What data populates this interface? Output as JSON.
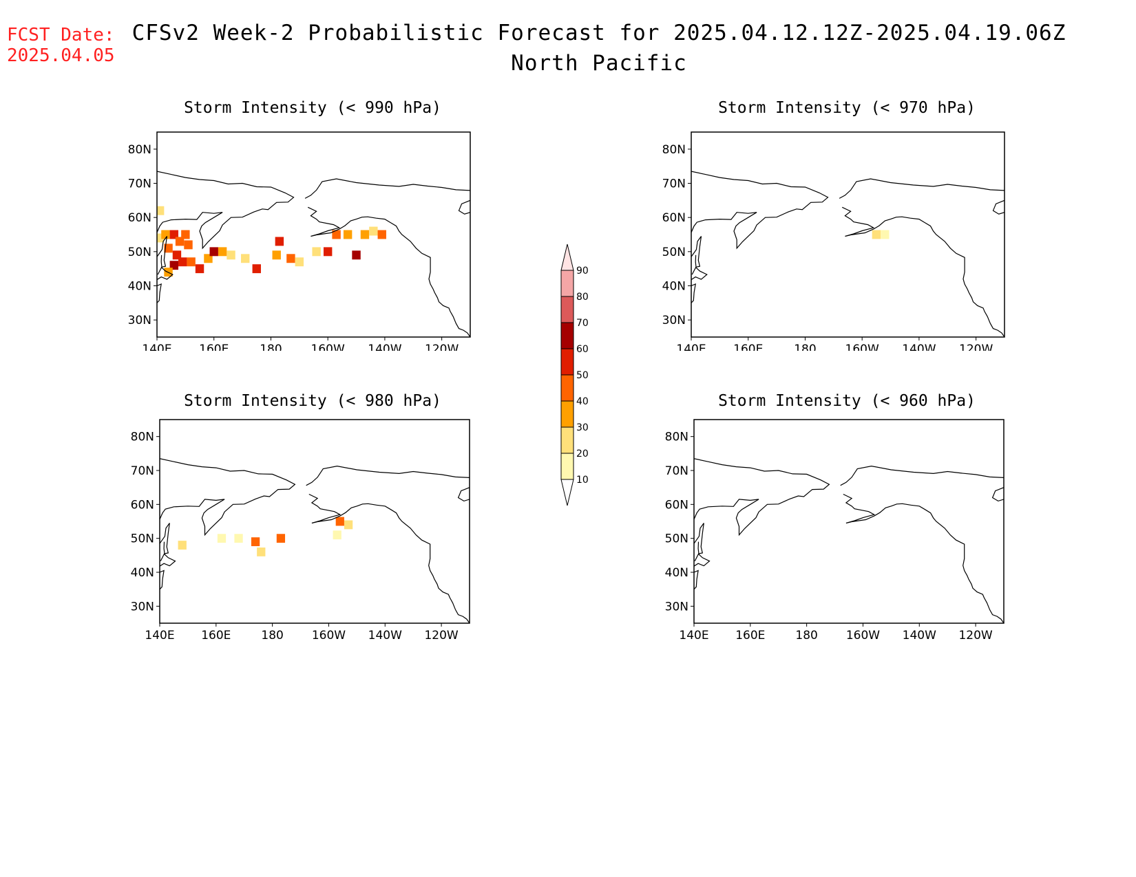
{
  "fcst_date": {
    "label": "FCST Date:",
    "value": "2025.04.05"
  },
  "title": "CFSv2 Week-2 Probabilistic Forecast for 2025.04.12.12Z-2025.04.19.06Z",
  "subtitle": "North Pacific",
  "axes": {
    "lat_ticks": [
      "80N",
      "70N",
      "60N",
      "50N",
      "40N",
      "30N"
    ],
    "lon_ticks": [
      "140E",
      "160E",
      "180",
      "160W",
      "140W",
      "120W"
    ]
  },
  "panels": [
    {
      "id": "p990",
      "title": "Storm Intensity (< 990 hPa)"
    },
    {
      "id": "p970",
      "title": "Storm Intensity (< 970 hPa)"
    },
    {
      "id": "p980",
      "title": "Storm Intensity (< 980 hPa)"
    },
    {
      "id": "p960",
      "title": "Storm Intensity (< 960 hPa)"
    }
  ],
  "colorbar": {
    "levels": [
      "10",
      "20",
      "30",
      "40",
      "50",
      "60",
      "70",
      "80",
      "90"
    ],
    "colors": [
      "#fff8b0",
      "#ffe07a",
      "#ffa000",
      "#ff6400",
      "#e01e00",
      "#a50000",
      "#dc5a5a",
      "#f4a6a6",
      "#ffe4e4"
    ]
  },
  "chart_data": {
    "type": "heatmap",
    "units": "probability (%)",
    "lon_range": [
      "140E",
      "110W"
    ],
    "lat_range": [
      "25N",
      "85N"
    ],
    "panels": [
      {
        "id": "p990",
        "cells": [
          {
            "lon": 141,
            "lat": 54,
            "v": 25
          },
          {
            "lon": 143,
            "lat": 55,
            "v": 35
          },
          {
            "lon": 146,
            "lat": 55,
            "v": 55
          },
          {
            "lon": 148,
            "lat": 53,
            "v": 45
          },
          {
            "lon": 150,
            "lat": 55,
            "v": 40
          },
          {
            "lon": 151,
            "lat": 52,
            "v": 45
          },
          {
            "lon": 144,
            "lat": 51,
            "v": 45
          },
          {
            "lon": 147,
            "lat": 49,
            "v": 55
          },
          {
            "lon": 146,
            "lat": 46,
            "v": 65
          },
          {
            "lon": 149,
            "lat": 47,
            "v": 55
          },
          {
            "lon": 144,
            "lat": 44,
            "v": 35
          },
          {
            "lon": 152,
            "lat": 47,
            "v": 40
          },
          {
            "lon": 155,
            "lat": 45,
            "v": 55
          },
          {
            "lon": 158,
            "lat": 48,
            "v": 35
          },
          {
            "lon": 160,
            "lat": 50,
            "v": 65
          },
          {
            "lon": 163,
            "lat": 50,
            "v": 35
          },
          {
            "lon": 166,
            "lat": 49,
            "v": 20
          },
          {
            "lon": 171,
            "lat": 48,
            "v": 20
          },
          {
            "lon": 175,
            "lat": 45,
            "v": 55
          },
          {
            "lon": 182,
            "lat": 49,
            "v": 30
          },
          {
            "lon": 183,
            "lat": 53,
            "v": 55
          },
          {
            "lon": 187,
            "lat": 48,
            "v": 45
          },
          {
            "lon": 190,
            "lat": 47,
            "v": 25
          },
          {
            "lon": 196,
            "lat": 50,
            "v": 25
          },
          {
            "lon": 200,
            "lat": 50,
            "v": 55
          },
          {
            "lon": 203,
            "lat": 55,
            "v": 40
          },
          {
            "lon": 207,
            "lat": 55,
            "v": 30
          },
          {
            "lon": 210,
            "lat": 49,
            "v": 60
          },
          {
            "lon": 213,
            "lat": 55,
            "v": 35
          },
          {
            "lon": 216,
            "lat": 56,
            "v": 25
          },
          {
            "lon": 219,
            "lat": 55,
            "v": 45
          },
          {
            "lon": 141,
            "lat": 62,
            "v": 20
          }
        ]
      },
      {
        "id": "p970",
        "cells": [
          {
            "lon": 205,
            "lat": 55,
            "v": 25
          },
          {
            "lon": 208,
            "lat": 55,
            "v": 15
          }
        ]
      },
      {
        "id": "p980",
        "cells": [
          {
            "lon": 148,
            "lat": 48,
            "v": 20
          },
          {
            "lon": 162,
            "lat": 50,
            "v": 15
          },
          {
            "lon": 168,
            "lat": 50,
            "v": 15
          },
          {
            "lon": 174,
            "lat": 49,
            "v": 45
          },
          {
            "lon": 176,
            "lat": 46,
            "v": 20
          },
          {
            "lon": 183,
            "lat": 50,
            "v": 45
          },
          {
            "lon": 204,
            "lat": 55,
            "v": 45
          },
          {
            "lon": 207,
            "lat": 54,
            "v": 20
          },
          {
            "lon": 203,
            "lat": 51,
            "v": 15
          }
        ]
      },
      {
        "id": "p960",
        "cells": []
      }
    ]
  },
  "coastlines": [
    [
      [
        140,
        73.5
      ],
      [
        145,
        72.6
      ],
      [
        150,
        71.7
      ],
      [
        155,
        71.1
      ],
      [
        160,
        70.8
      ],
      [
        165,
        69.8
      ],
      [
        170,
        70.0
      ],
      [
        175,
        69.0
      ],
      [
        180,
        68.9
      ],
      [
        185,
        67.2
      ],
      [
        188,
        65.9
      ],
      [
        186,
        64.5
      ],
      [
        182,
        64.4
      ],
      [
        179,
        62.3
      ],
      [
        177,
        62.5
      ],
      [
        174,
        61.6
      ],
      [
        170,
        60.1
      ],
      [
        166,
        60.0
      ],
      [
        163,
        57.8
      ],
      [
        162,
        56.1
      ],
      [
        158,
        52.9
      ],
      [
        156,
        51.0
      ],
      [
        156,
        53.5
      ],
      [
        155,
        56.0
      ],
      [
        155.7,
        57.5
      ],
      [
        157,
        58.5
      ],
      [
        160,
        60.0
      ],
      [
        163,
        61.5
      ],
      [
        160,
        61.2
      ],
      [
        156,
        61.5
      ],
      [
        154,
        59.4
      ],
      [
        150,
        59.5
      ],
      [
        145,
        59.3
      ],
      [
        142,
        58.6
      ],
      [
        141,
        57.5
      ],
      [
        140,
        55.6
      ]
    ],
    [
      [
        140,
        48.5
      ],
      [
        141.8,
        50.6
      ],
      [
        142.2,
        53
      ],
      [
        143.5,
        54.5
      ],
      [
        143,
        51.5
      ],
      [
        142.5,
        47.5
      ],
      [
        143,
        45.7
      ],
      [
        141.7,
        45.5
      ],
      [
        141.5,
        47
      ],
      [
        141.6,
        49
      ]
    ],
    [
      [
        140,
        41.8
      ],
      [
        141.5,
        42.6
      ],
      [
        143.5,
        41.9
      ],
      [
        145.5,
        43.3
      ],
      [
        143,
        44.3
      ],
      [
        141.6,
        45.4
      ],
      [
        140.3,
        43.3
      ]
    ],
    [
      [
        140,
        40
      ],
      [
        141.5,
        40.5
      ],
      [
        141,
        38
      ],
      [
        140.8,
        35.7
      ],
      [
        140,
        35
      ]
    ],
    [
      [
        192,
        65.6
      ],
      [
        194,
        66.5
      ],
      [
        196,
        68
      ],
      [
        198,
        70.5
      ],
      [
        203,
        71.3
      ],
      [
        210,
        70.2
      ],
      [
        218,
        69.5
      ],
      [
        225,
        69.1
      ],
      [
        230,
        69.7
      ],
      [
        235,
        69.2
      ],
      [
        240,
        68.8
      ],
      [
        245,
        68.1
      ],
      [
        250,
        67.9
      ]
    ],
    [
      [
        250,
        65
      ],
      [
        247,
        64
      ],
      [
        246,
        62
      ],
      [
        248,
        61
      ],
      [
        250,
        61.5
      ]
    ],
    [
      [
        193,
        63
      ],
      [
        196,
        61.8
      ],
      [
        194,
        60.5
      ],
      [
        196,
        59.5
      ],
      [
        197,
        58.7
      ],
      [
        202,
        57.9
      ],
      [
        204,
        57
      ],
      [
        200,
        56.1
      ],
      [
        197,
        55.2
      ],
      [
        194,
        54.5
      ],
      [
        196,
        54.9
      ],
      [
        201,
        55.5
      ],
      [
        204,
        56.6
      ],
      [
        206,
        57.6
      ],
      [
        208,
        59.0
      ],
      [
        210,
        59.5
      ],
      [
        212,
        60.1
      ],
      [
        214,
        60.2
      ],
      [
        217,
        59.8
      ],
      [
        220,
        59.5
      ],
      [
        222,
        58.5
      ],
      [
        224,
        57.5
      ],
      [
        225,
        56
      ],
      [
        226,
        55
      ],
      [
        229,
        53
      ],
      [
        231,
        51
      ],
      [
        233,
        49.5
      ],
      [
        236,
        48.3
      ],
      [
        236,
        46
      ],
      [
        236,
        44
      ],
      [
        235.5,
        42
      ],
      [
        236,
        40.5
      ],
      [
        237,
        39
      ],
      [
        237.5,
        38
      ],
      [
        238.5,
        36.5
      ],
      [
        239,
        35.3
      ],
      [
        240.5,
        34.2
      ],
      [
        242.5,
        33.5
      ],
      [
        243,
        32.5
      ],
      [
        244,
        31
      ],
      [
        245,
        29
      ],
      [
        246,
        27.5
      ],
      [
        247.6,
        27
      ],
      [
        249,
        26.2
      ],
      [
        250,
        25
      ]
    ]
  ]
}
